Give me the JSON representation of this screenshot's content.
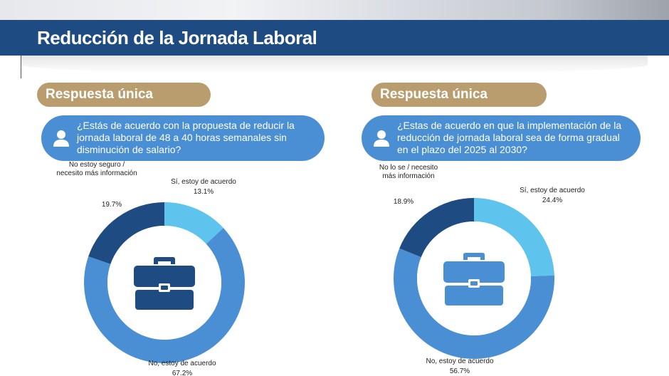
{
  "header": {
    "title": "Reducción de la Jornada Laboral"
  },
  "panels": [
    {
      "tag": "Respuesta única",
      "question": "¿Estás de acuerdo con la propuesta de reducir la jornada laboral de 48 a 40 horas semanales sin disminución de salario?"
    },
    {
      "tag": "Respuesta única",
      "question": "¿Estas de acuerdo en que la implementación de la reducción de jornada laboral sea de forma gradual en el plazo del 2025 al 2030?"
    }
  ],
  "chart_data": [
    {
      "type": "pie",
      "slices": [
        {
          "label": [
            "Sí, estoy de acuerdo"
          ],
          "value": 13.1,
          "value_label": "13.1%",
          "color": "#5ec4ee"
        },
        {
          "label": [
            "No, estoy de acuerdo"
          ],
          "value": 67.2,
          "value_label": "67.2%",
          "color": "#4a8fd4"
        },
        {
          "label": [
            "No estoy seguro /",
            "necesito más información"
          ],
          "value": 19.7,
          "value_label": "19.7%",
          "color": "#1e4b82"
        }
      ],
      "center_icon": "briefcase-icon"
    },
    {
      "type": "pie",
      "slices": [
        {
          "label": [
            "Sí, estoy de acuerdo"
          ],
          "value": 24.4,
          "value_label": "24.4%",
          "color": "#5ec4ee"
        },
        {
          "label": [
            "No, estoy de acuerdo"
          ],
          "value": 56.7,
          "value_label": "56.7%",
          "color": "#4a8fd4"
        },
        {
          "label": [
            "No lo se / necesito",
            "más información"
          ],
          "value": 18.9,
          "value_label": "18.9%",
          "color": "#1e4b82"
        }
      ],
      "center_icon": "briefcase-icon"
    }
  ]
}
